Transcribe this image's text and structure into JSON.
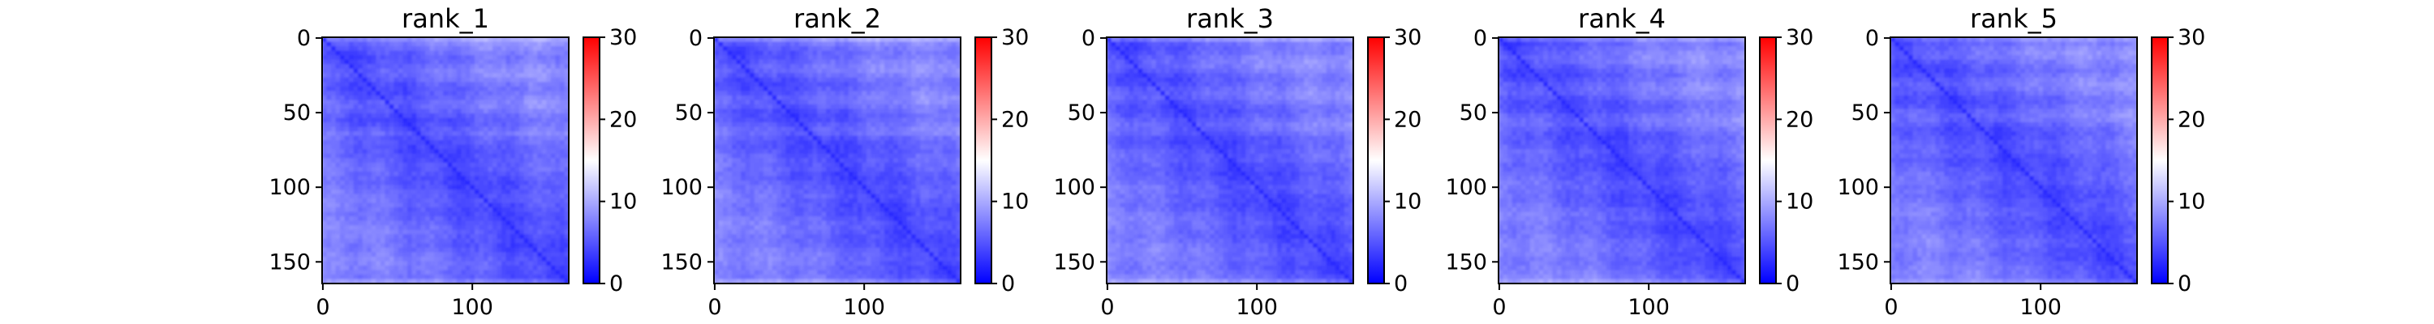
{
  "chart_data": [
    {
      "type": "heatmap",
      "title": "rank_1",
      "n": 165,
      "x_ticks": [
        0,
        100
      ],
      "y_ticks": [
        0,
        50,
        100,
        150
      ],
      "colorbar": {
        "min": 0,
        "max": 30,
        "ticks": [
          0,
          10,
          20,
          30
        ],
        "colormap": "bwr"
      },
      "value_range_approx": [
        2,
        9
      ]
    },
    {
      "type": "heatmap",
      "title": "rank_2",
      "n": 165,
      "x_ticks": [
        0,
        100
      ],
      "y_ticks": [
        0,
        50,
        100,
        150
      ],
      "colorbar": {
        "min": 0,
        "max": 30,
        "ticks": [
          0,
          10,
          20,
          30
        ],
        "colormap": "bwr"
      },
      "value_range_approx": [
        2,
        9
      ]
    },
    {
      "type": "heatmap",
      "title": "rank_3",
      "n": 165,
      "x_ticks": [
        0,
        100
      ],
      "y_ticks": [
        0,
        50,
        100,
        150
      ],
      "colorbar": {
        "min": 0,
        "max": 30,
        "ticks": [
          0,
          10,
          20,
          30
        ],
        "colormap": "bwr"
      },
      "value_range_approx": [
        2,
        9
      ]
    },
    {
      "type": "heatmap",
      "title": "rank_4",
      "n": 165,
      "x_ticks": [
        0,
        100
      ],
      "y_ticks": [
        0,
        50,
        100,
        150
      ],
      "colorbar": {
        "min": 0,
        "max": 30,
        "ticks": [
          0,
          10,
          20,
          30
        ],
        "colormap": "bwr"
      },
      "value_range_approx": [
        2,
        9
      ]
    },
    {
      "type": "heatmap",
      "title": "rank_5",
      "n": 165,
      "x_ticks": [
        0,
        100
      ],
      "y_ticks": [
        0,
        50,
        100,
        150
      ],
      "colorbar": {
        "min": 0,
        "max": 30,
        "ticks": [
          0,
          10,
          20,
          30
        ],
        "colormap": "bwr"
      },
      "value_range_approx": [
        2,
        9
      ]
    }
  ]
}
